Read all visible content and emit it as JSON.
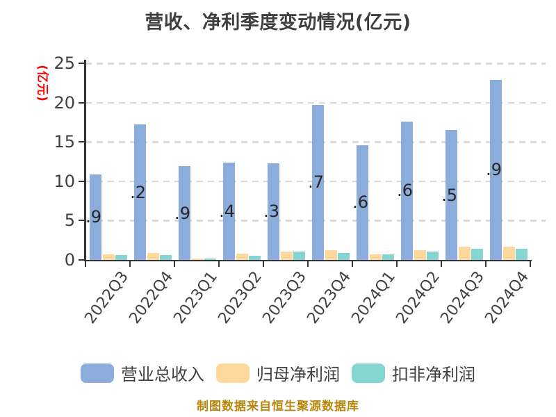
{
  "chart_data": {
    "type": "bar",
    "title": "营收、净利季度变动情况(亿元)",
    "ylabel": "(亿元)",
    "footer": "制图数据来自恒生聚源数据库",
    "categories": [
      "2022Q3",
      "2022Q4",
      "2023Q1",
      "2023Q2",
      "2023Q3",
      "2023Q4",
      "2024Q1",
      "2024Q2",
      "2024Q3",
      "2024Q4"
    ],
    "series": [
      {
        "name": "营业总收入",
        "key": "total-revenue",
        "color": "#8CACDB",
        "values": [
          10.9,
          17.2,
          11.9,
          12.4,
          12.3,
          19.7,
          14.6,
          17.6,
          16.5,
          22.9
        ],
        "bar_labels": [
          ".9",
          ".2",
          ".9",
          ".4",
          ".3",
          ".7",
          ".6",
          ".6",
          ".5",
          ".9"
        ]
      },
      {
        "name": "归母净利润",
        "key": "net-profit",
        "color": "#FDD99E",
        "values": [
          0.7,
          0.9,
          0.2,
          0.8,
          1.1,
          1.2,
          0.75,
          1.2,
          1.65,
          1.7
        ]
      },
      {
        "name": "扣非净利润",
        "key": "non-gaap-net-profit",
        "color": "#85D6D0",
        "values": [
          0.6,
          0.6,
          0.2,
          0.55,
          1.1,
          0.9,
          0.7,
          1.05,
          1.45,
          1.4
        ]
      }
    ],
    "ylim": [
      0,
      25
    ],
    "yticks": [
      0,
      5,
      10,
      15,
      20,
      25
    ],
    "grid": "horizontal-dashed",
    "legend_position": "bottom",
    "colors": {
      "title": "#3F3F3F",
      "axis": "#333333",
      "grid": "#D9D9D9",
      "tick_label": "#3F3F3F",
      "ylabel": "#FF0000",
      "footer": "#B8860B",
      "bar_label": "#262626",
      "background": "#FFFFFF"
    }
  }
}
